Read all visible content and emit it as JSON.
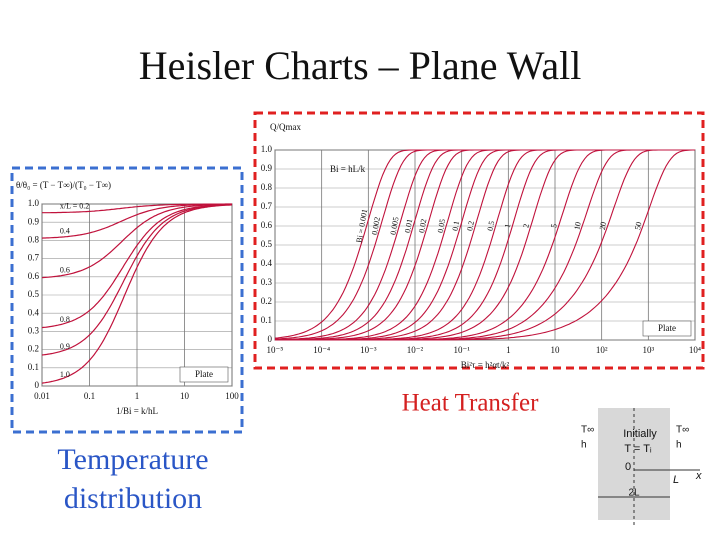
{
  "title": "Heisler Charts – Plane Wall",
  "left_chart": {
    "y_label": "θ/θ₀ = (T − T∞)/(T₀ − T∞)",
    "x_label": "1/Bi = k/hL",
    "xlim": [
      0.01,
      100
    ],
    "xticks": [
      0.01,
      0.1,
      1,
      10,
      100
    ],
    "ylim": [
      0,
      1
    ],
    "yticks": [
      0,
      0.1,
      0.2,
      0.3,
      0.4,
      0.5,
      0.6,
      0.7,
      0.8,
      0.9,
      {
        "value": 1,
        "label": "1.0"
      }
    ],
    "log_x": true,
    "legend": "Plate",
    "curves": [
      {
        "label": "x/L = 0.2",
        "x_over_L": 0.2
      },
      {
        "label": "0.4",
        "x_over_L": 0.4
      },
      {
        "label": "0.6",
        "x_over_L": 0.6
      },
      {
        "label": "0.8",
        "x_over_L": 0.8
      },
      {
        "label": "0.9",
        "x_over_L": 0.9
      },
      {
        "label": "1.0",
        "x_over_L": 1
      }
    ]
  },
  "right_chart": {
    "y_label": "Q/Qmax",
    "x_label": "Bi²τ = h²αt/k²",
    "parameter_label": "Bi = hL/k",
    "xlim": [
      1e-05,
      10000
    ],
    "xticks": [
      {
        "value": 1e-05,
        "label": "10⁻⁵"
      },
      {
        "value": 0.0001,
        "label": "10⁻⁴"
      },
      {
        "value": 0.001,
        "label": "10⁻³"
      },
      {
        "value": 0.01,
        "label": "10⁻²"
      },
      {
        "value": 0.1,
        "label": "10⁻¹"
      },
      1,
      10,
      {
        "value": 100,
        "label": "10²"
      },
      {
        "value": 1000,
        "label": "10³"
      },
      {
        "value": 10000,
        "label": "10⁴"
      }
    ],
    "ylim": [
      0,
      1
    ],
    "yticks": [
      0,
      0.1,
      0.2,
      0.3,
      0.4,
      0.5,
      0.6,
      0.7,
      0.8,
      0.9,
      {
        "value": 1,
        "label": "1.0"
      }
    ],
    "log_x": true,
    "legend": "Plate",
    "curves": [
      {
        "label": "Bi = 0.001",
        "bi": 0.001
      },
      {
        "label": "0.002",
        "bi": 0.002
      },
      {
        "label": "0.005",
        "bi": 0.005
      },
      {
        "label": "0.01",
        "bi": 0.01
      },
      {
        "label": "0.02",
        "bi": 0.02
      },
      {
        "label": "0.05",
        "bi": 0.05
      },
      {
        "label": "0.1",
        "bi": 0.1
      },
      {
        "label": "0.2",
        "bi": 0.2
      },
      {
        "label": "0.5",
        "bi": 0.5
      },
      {
        "label": "1",
        "bi": 1
      },
      {
        "label": "2",
        "bi": 2
      },
      {
        "label": "5",
        "bi": 5
      },
      {
        "label": "10",
        "bi": 10
      },
      {
        "label": "20",
        "bi": 20
      },
      {
        "label": "50",
        "bi": 50
      }
    ]
  },
  "captions": {
    "heat_transfer": "Heat Transfer",
    "temperature_1": "Temperature",
    "temperature_2": "distribution"
  },
  "diagram": {
    "initially": "Initially",
    "t_init": "T = Tᵢ",
    "t_inf_left": "T∞",
    "h_left": "h",
    "t_inf_right": "T∞",
    "h_right": "h",
    "origin": "0",
    "l": "L",
    "x": "x",
    "width": "2L"
  }
}
